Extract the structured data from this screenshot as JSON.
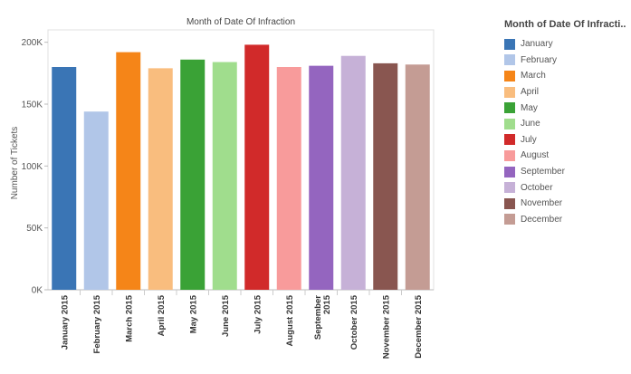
{
  "chart_data": {
    "type": "bar",
    "title": "Month of Date Of Infraction",
    "xlabel": "",
    "ylabel": "Number of Tickets",
    "ylim": [
      0,
      210000
    ],
    "yticks": [
      {
        "value": 0,
        "label": "0K"
      },
      {
        "value": 50000,
        "label": "50K"
      },
      {
        "value": 100000,
        "label": "100K"
      },
      {
        "value": 150000,
        "label": "150K"
      },
      {
        "value": 200000,
        "label": "200K"
      }
    ],
    "categories": [
      [
        "January 2015"
      ],
      [
        "February 2015"
      ],
      [
        "March 2015"
      ],
      [
        "April 2015"
      ],
      [
        "May 2015"
      ],
      [
        "June 2015"
      ],
      [
        "July 2015"
      ],
      [
        "August 2015"
      ],
      [
        "September",
        "2015"
      ],
      [
        "October 2015"
      ],
      [
        "November 2015"
      ],
      [
        "December 2015"
      ]
    ],
    "values": [
      180000,
      144000,
      192000,
      179000,
      186000,
      184000,
      198000,
      180000,
      181000,
      189000,
      183000,
      182000
    ],
    "colors": [
      "#3a75b5",
      "#b1c6e8",
      "#f58518",
      "#f9bd7e",
      "#3aa236",
      "#a0dd8d",
      "#d12a2a",
      "#f89b9b",
      "#9465bf",
      "#c6b1d7",
      "#895650",
      "#c49c94"
    ],
    "grid": false,
    "legend": {
      "title": "Month of Date Of Infracti..",
      "position": "right",
      "items": [
        "January",
        "February",
        "March",
        "April",
        "May",
        "June",
        "July",
        "August",
        "September",
        "October",
        "November",
        "December"
      ]
    }
  }
}
